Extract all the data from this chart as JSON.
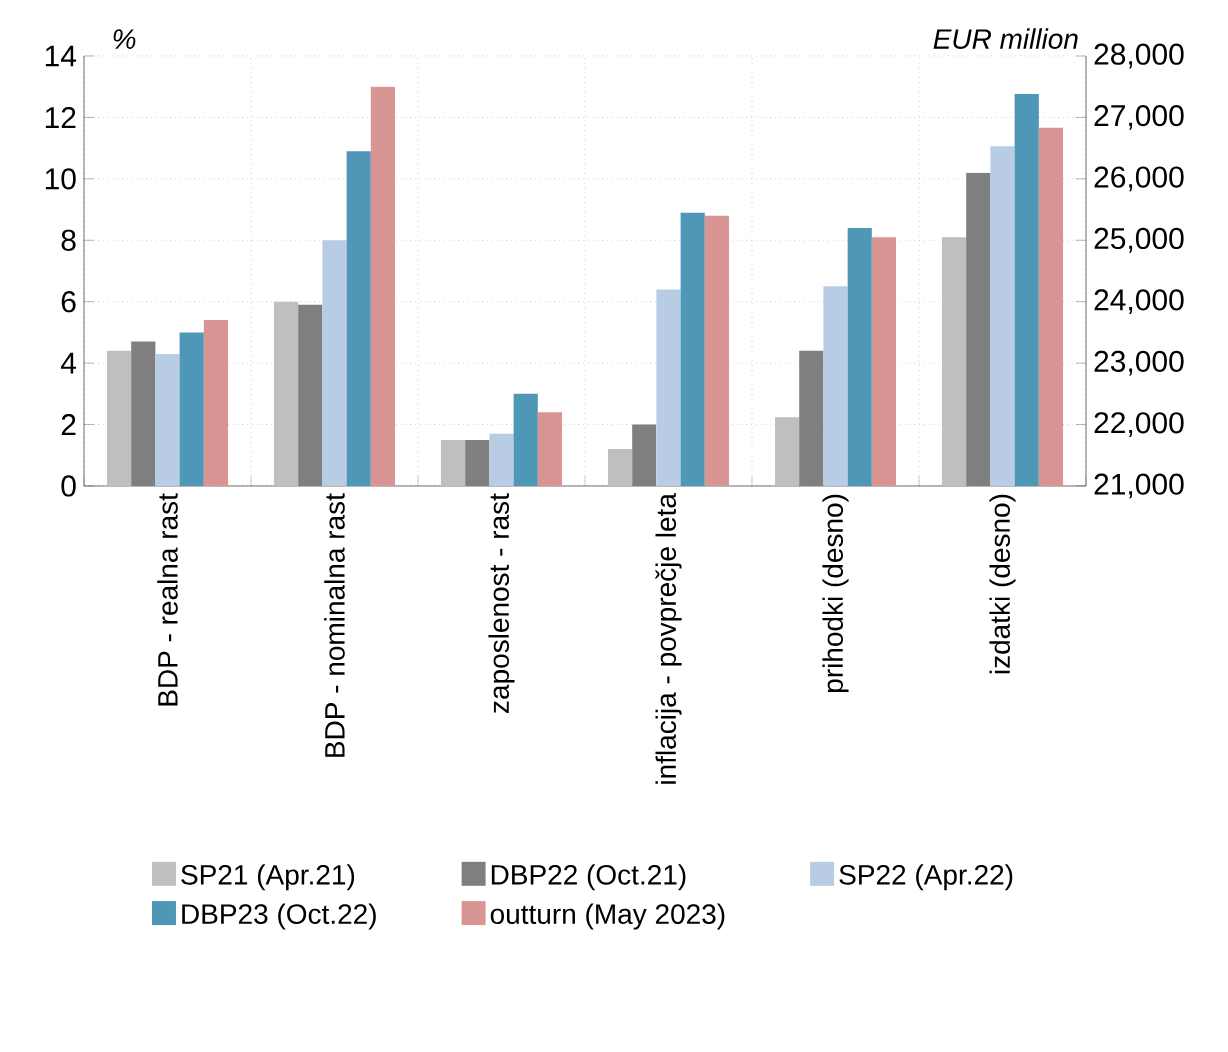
{
  "chart_data": {
    "type": "bar",
    "ylabel": "%",
    "y2label": "EUR million",
    "categories": [
      "BDP - realna rast",
      "BDP - nominalna rast",
      "zaposlenost - rast",
      "inflacija - povprečje leta",
      "prihodki (desno)",
      "izdatki (desno)"
    ],
    "series": [
      {
        "name": "SP21 (Apr.21)",
        "color": "#bfbfbf",
        "values": [
          4.4,
          6.0,
          1.5,
          1.2,
          null,
          null
        ]
      },
      {
        "name": "DBP22 (Oct.21)",
        "color": "#7f7f7f",
        "values": [
          4.7,
          5.9,
          1.5,
          2.0,
          null,
          null
        ]
      },
      {
        "name": "SP22 (Apr.22)",
        "color": "#b8cce4",
        "values": [
          4.3,
          8.0,
          1.7,
          6.4,
          null,
          null
        ]
      },
      {
        "name": "DBP23 (Oct.22)",
        "color": "#4f97b7",
        "values": [
          5.0,
          10.9,
          3.0,
          8.9,
          null,
          null
        ]
      },
      {
        "name": "outturn (May 2023)",
        "color": "#d99594",
        "values": [
          5.4,
          13.0,
          2.4,
          8.8,
          null,
          null
        ]
      },
      {
        "color": "#bfbfbf",
        "axis": "y2",
        "values": [
          null,
          null,
          null,
          null,
          22120,
          25050
        ]
      },
      {
        "color": "#7f7f7f",
        "axis": "y2",
        "values": [
          null,
          null,
          null,
          null,
          23200,
          26100
        ]
      },
      {
        "color": "#b8cce4",
        "axis": "y2",
        "values": [
          null,
          null,
          null,
          null,
          24250,
          26530
        ]
      },
      {
        "color": "#4f97b7",
        "axis": "y2",
        "values": [
          null,
          null,
          null,
          null,
          25200,
          27380
        ]
      },
      {
        "color": "#d99594",
        "axis": "y2",
        "values": [
          null,
          null,
          null,
          null,
          25050,
          26830
        ]
      }
    ],
    "ylim": [
      0,
      14
    ],
    "yticks": [
      0,
      2,
      4,
      6,
      8,
      10,
      12,
      14
    ],
    "y2lim": [
      21000,
      28000
    ],
    "y2ticks": [
      {
        "value": 21000,
        "label": "21,000"
      },
      {
        "value": 22000,
        "label": "22,000"
      },
      {
        "value": 23000,
        "label": "23,000"
      },
      {
        "value": 24000,
        "label": "24,000"
      },
      {
        "value": 25000,
        "label": "25,000"
      },
      {
        "value": 26000,
        "label": "26,000"
      },
      {
        "value": 27000,
        "label": "27,000"
      },
      {
        "value": 28000,
        "label": "28,000"
      }
    ],
    "grid": true,
    "legend": "bottom"
  }
}
